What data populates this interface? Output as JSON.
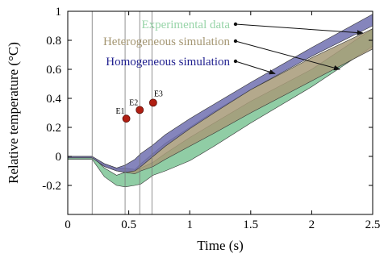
{
  "chart_data": {
    "type": "area",
    "xlabel": "Time (s)",
    "ylabel": "Relative temperature (°C)",
    "xlim": [
      0,
      2.5
    ],
    "ylim": [
      -0.4,
      1.0
    ],
    "xticks": [
      0,
      0.5,
      1,
      1.5,
      2,
      2.5
    ],
    "xtick_labels": [
      "0",
      "0.5",
      "1",
      "1.5",
      "2",
      "2.5"
    ],
    "yticks": [
      -0.2,
      0,
      0.2,
      0.4,
      0.6,
      0.8,
      1
    ],
    "ytick_labels": [
      "-0.2",
      "0",
      "0.2",
      "0.4",
      "0.6",
      "0.8",
      "1"
    ],
    "grid": false,
    "vlines": [
      0.2,
      0.47,
      0.59,
      0.69
    ],
    "series": [
      {
        "name": "Experimental data",
        "color": "#7dc495",
        "x": [
          0,
          0.1,
          0.2,
          0.3,
          0.4,
          0.47,
          0.55,
          0.6,
          0.7,
          0.8,
          1.0,
          1.2,
          1.5,
          2.0,
          2.5
        ],
        "upper": [
          0.0,
          0.0,
          0.0,
          -0.08,
          -0.13,
          -0.11,
          -0.1,
          -0.08,
          -0.04,
          0.02,
          0.13,
          0.23,
          0.38,
          0.6,
          0.88
        ],
        "lower": [
          -0.02,
          -0.02,
          -0.02,
          -0.14,
          -0.2,
          -0.21,
          -0.2,
          -0.19,
          -0.13,
          -0.1,
          -0.03,
          0.07,
          0.23,
          0.48,
          0.76
        ]
      },
      {
        "name": "Heterogeneous simulation",
        "color": "#a79a78",
        "x": [
          0,
          0.1,
          0.2,
          0.3,
          0.4,
          0.47,
          0.55,
          0.6,
          0.7,
          0.8,
          1.0,
          1.2,
          1.5,
          2.0,
          2.5
        ],
        "upper": [
          0.0,
          0.0,
          0.0,
          -0.05,
          -0.08,
          -0.08,
          -0.09,
          -0.05,
          0.02,
          0.09,
          0.2,
          0.31,
          0.46,
          0.68,
          0.88
        ],
        "lower": [
          -0.01,
          -0.01,
          -0.01,
          -0.07,
          -0.1,
          -0.11,
          -0.12,
          -0.1,
          -0.07,
          -0.02,
          0.07,
          0.16,
          0.3,
          0.52,
          0.74
        ]
      },
      {
        "name": "Homogeneous simulation",
        "color": "#7070b0",
        "x": [
          0,
          0.1,
          0.2,
          0.3,
          0.4,
          0.47,
          0.55,
          0.6,
          0.7,
          0.8,
          1.0,
          1.2,
          1.5,
          2.0,
          2.5
        ],
        "upper": [
          0.0,
          0.0,
          0.0,
          -0.05,
          -0.08,
          -0.06,
          -0.02,
          0.02,
          0.08,
          0.15,
          0.26,
          0.36,
          0.51,
          0.75,
          0.98
        ],
        "lower": [
          -0.01,
          -0.01,
          -0.01,
          -0.07,
          -0.1,
          -0.11,
          -0.1,
          -0.07,
          0.0,
          0.07,
          0.19,
          0.3,
          0.46,
          0.69,
          0.9
        ]
      }
    ],
    "markers": [
      {
        "label": "E1",
        "x": 0.48,
        "y": 0.26
      },
      {
        "label": "E2",
        "x": 0.59,
        "y": 0.32
      },
      {
        "label": "E3",
        "x": 0.7,
        "y": 0.37
      }
    ],
    "legend_entries": [
      {
        "text": "Experimental data",
        "color": "#97d4a8",
        "target_x": 2.42,
        "target_y": 0.85
      },
      {
        "text": "Heterogeneous simulation",
        "color": "#a49672",
        "target_x": 2.23,
        "target_y": 0.6
      },
      {
        "text": "Homogeneous simulation",
        "color": "#1f1f8f",
        "target_x": 1.7,
        "target_y": 0.57
      }
    ]
  }
}
